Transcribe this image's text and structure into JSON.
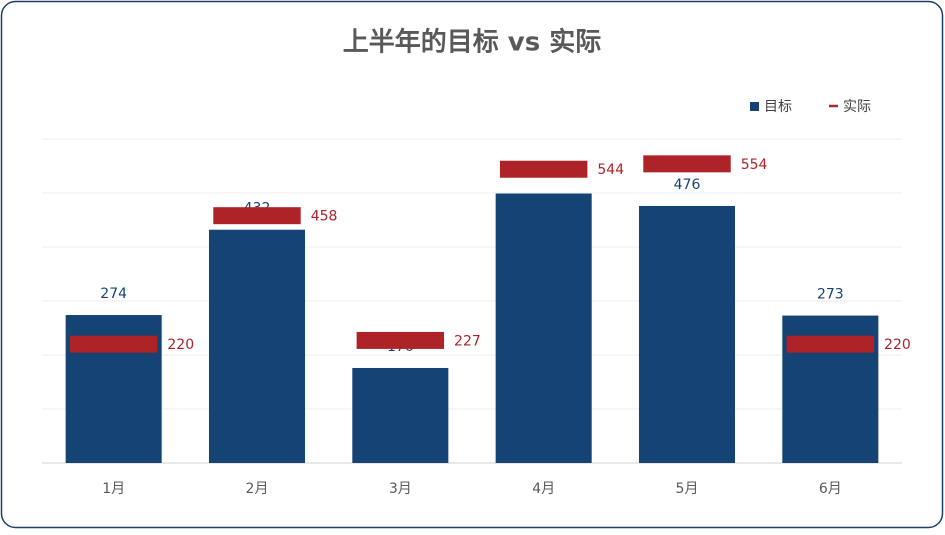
{
  "chart_data": {
    "type": "bar-target",
    "title": "上半年的目标 vs 实际",
    "categories": [
      "1月",
      "2月",
      "3月",
      "4月",
      "5月",
      "6月"
    ],
    "series": [
      {
        "name": "目标",
        "color": "#154373",
        "values": [
          274,
          432,
          176,
          499,
          476,
          273
        ]
      },
      {
        "name": "实际",
        "color": "#ad2327",
        "values": [
          220,
          458,
          227,
          544,
          554,
          220
        ]
      }
    ],
    "ylim": [
      0,
      600
    ],
    "yticks": [
      0,
      100,
      200,
      300,
      400,
      500,
      600
    ],
    "grid": true,
    "legend": "top-right"
  }
}
